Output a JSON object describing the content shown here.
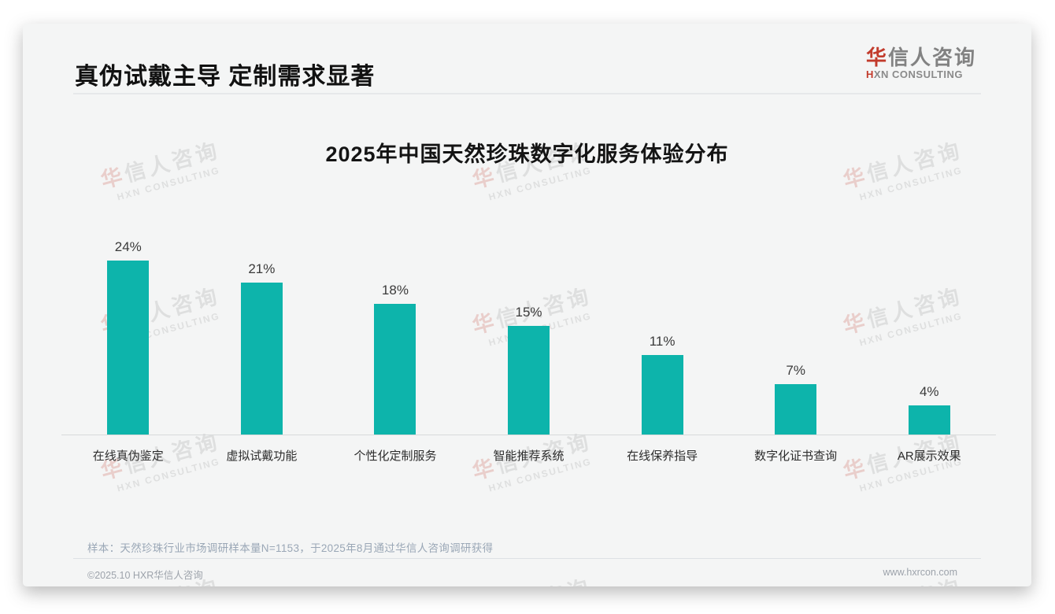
{
  "page": {
    "header": {
      "title": "真伪试戴主导 定制需求显著"
    },
    "logo": {
      "cn_first": "华",
      "cn_rest": "信人咨询",
      "en_first": "H",
      "en_rest": "XN CONSULTING"
    },
    "watermark": {
      "line1": "华信人咨询",
      "line2": "HXN CONSULTING"
    },
    "note": "样本：天然珍珠行业市场调研样本量N=1153，于2025年8月通过华信人咨询调研获得",
    "footer": {
      "left": "©2025.10 HXR华信人咨询",
      "right": "www.hxrcon.com"
    }
  },
  "chart_data": {
    "type": "bar",
    "title": "2025年中国天然珍珠数字化服务体验分布",
    "categories": [
      "在线真伪鉴定",
      "虚拟试戴功能",
      "个性化定制服务",
      "智能推荐系统",
      "在线保养指导",
      "数字化证书查询",
      "AR展示效果"
    ],
    "values": [
      24,
      21,
      18,
      15,
      11,
      7,
      4
    ],
    "value_labels": [
      "24%",
      "21%",
      "18%",
      "15%",
      "11%",
      "7%",
      "4%"
    ],
    "unit": "%",
    "xlabel": "",
    "ylabel": "",
    "ylim": [
      0,
      26
    ],
    "grid": false,
    "legend": "none",
    "bar_color": "#0db4ab",
    "axis_line_color": "#d8dadb"
  }
}
